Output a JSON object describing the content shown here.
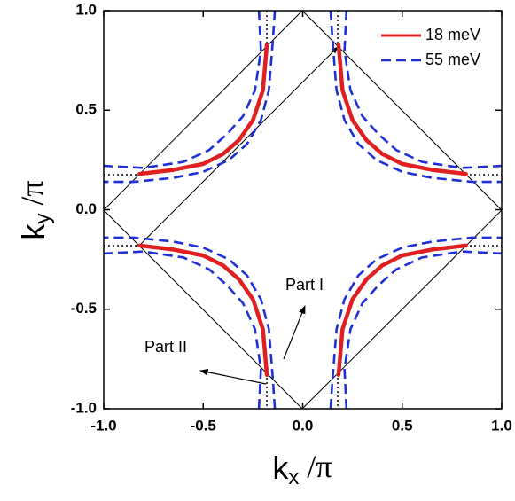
{
  "chart_data": {
    "type": "line",
    "xlabel": {
      "base": "k",
      "sub": "x",
      "rest": " /π"
    },
    "ylabel": {
      "base": "k",
      "sub": "y",
      "rest": " /π"
    },
    "xlim": [
      -1.0,
      1.0
    ],
    "ylim": [
      -1.0,
      1.0
    ],
    "xticks": [
      {
        "value": -1,
        "label": "-1.0"
      },
      -0.5,
      {
        "value": 0,
        "label": "0.0"
      },
      0.5,
      {
        "value": 1,
        "label": "1.0"
      }
    ],
    "yticks": [
      {
        "value": -1,
        "label": "-1.0"
      },
      -0.5,
      {
        "value": 0,
        "label": "0.0"
      },
      0.5,
      {
        "value": 1,
        "label": "1.0"
      }
    ],
    "legend": "upper right",
    "annotations": [
      "Part I",
      "Part II"
    ],
    "series": [
      {
        "name": "18 meV",
        "color": "#e02020",
        "dash": false,
        "x": [
          0.18,
          0.2,
          0.25,
          0.32,
          0.4,
          0.5,
          0.65,
          0.82,
          null,
          -0.18,
          -0.2,
          -0.25,
          -0.32,
          -0.4,
          -0.5,
          -0.65,
          -0.82,
          null,
          0.18,
          0.2,
          0.25,
          0.32,
          0.4,
          0.5,
          0.65,
          0.82,
          null,
          -0.18,
          -0.2,
          -0.25,
          -0.32,
          -0.4,
          -0.5,
          -0.65,
          -0.82
        ],
        "values": [
          0.83,
          0.6,
          0.45,
          0.35,
          0.28,
          0.23,
          0.2,
          0.18,
          null,
          0.83,
          0.6,
          0.45,
          0.35,
          0.28,
          0.23,
          0.2,
          0.18,
          null,
          -0.83,
          -0.6,
          -0.45,
          -0.35,
          -0.28,
          -0.23,
          -0.2,
          -0.18,
          null,
          -0.83,
          -0.6,
          -0.45,
          -0.35,
          -0.28,
          -0.23,
          -0.2,
          -0.18
        ]
      },
      {
        "name": "55 meV",
        "color": "#1f2fd6",
        "dash": true,
        "x": [
          0.14,
          0.15,
          0.17,
          0.21,
          0.28,
          0.37,
          0.5,
          0.65,
          0.85,
          1.0,
          null,
          0.22,
          0.21,
          0.24,
          0.3,
          0.38,
          0.47,
          0.6,
          0.8,
          1.0,
          null,
          -0.14,
          -0.15,
          -0.17,
          -0.21,
          -0.28,
          -0.37,
          -0.5,
          -0.65,
          -0.85,
          -1.0,
          null,
          -0.22,
          -0.21,
          -0.24,
          -0.3,
          -0.38,
          -0.47,
          -0.6,
          -0.8,
          -1.0,
          null,
          0.14,
          0.15,
          0.17,
          0.21,
          0.28,
          0.37,
          0.5,
          0.65,
          0.85,
          1.0,
          null,
          0.22,
          0.21,
          0.24,
          0.3,
          0.38,
          0.47,
          0.6,
          0.8,
          1.0,
          null,
          -0.14,
          -0.15,
          -0.17,
          -0.21,
          -0.28,
          -0.37,
          -0.5,
          -0.65,
          -0.85,
          -1.0,
          null,
          -0.22,
          -0.21,
          -0.24,
          -0.3,
          -0.38,
          -0.47,
          -0.6,
          -0.8,
          -1.0
        ],
        "values": [
          1.0,
          0.85,
          0.6,
          0.45,
          0.33,
          0.25,
          0.19,
          0.16,
          0.14,
          0.14,
          null,
          1.0,
          0.8,
          0.6,
          0.47,
          0.38,
          0.3,
          0.24,
          0.21,
          0.22,
          null,
          1.0,
          0.85,
          0.6,
          0.45,
          0.33,
          0.25,
          0.19,
          0.16,
          0.14,
          0.14,
          null,
          1.0,
          0.8,
          0.6,
          0.47,
          0.38,
          0.3,
          0.24,
          0.21,
          0.22,
          null,
          -1.0,
          -0.85,
          -0.6,
          -0.45,
          -0.33,
          -0.25,
          -0.19,
          -0.16,
          -0.14,
          -0.14,
          null,
          -1.0,
          -0.8,
          -0.6,
          -0.47,
          -0.38,
          -0.3,
          -0.24,
          -0.21,
          -0.22,
          null,
          -1.0,
          -0.85,
          -0.6,
          -0.45,
          -0.33,
          -0.25,
          -0.19,
          -0.16,
          -0.14,
          -0.14,
          null,
          -1.0,
          -0.8,
          -0.6,
          -0.47,
          -0.38,
          -0.3,
          -0.24,
          -0.21,
          -0.22
        ]
      }
    ]
  }
}
